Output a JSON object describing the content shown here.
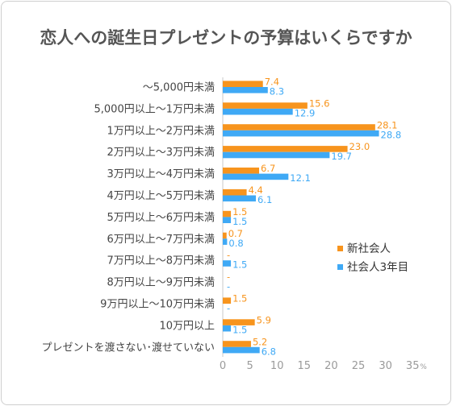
{
  "chart_data": {
    "type": "bar",
    "orientation": "horizontal",
    "title": "恋人への誕生日プレゼントの予算はいくらですか",
    "categories": [
      "～5,000円未満",
      "5,000円以上～1万円未満",
      "1万円以上～2万円未満",
      "2万円以上～3万円未満",
      "3万円以上～4万円未満",
      "4万円以上～5万円未満",
      "5万円以上～6万円未満",
      "6万円以上～7万円未満",
      "7万円以上～8万円未満",
      "8万円以上～9万円未満",
      "9万円以上～10万円未満",
      "10万円以上",
      "プレゼントを渡さない･渡せていない"
    ],
    "series": [
      {
        "name": "新社会人",
        "color": "#f7941d",
        "values": [
          7.4,
          15.6,
          28.1,
          23.0,
          6.7,
          4.4,
          1.5,
          0.7,
          0,
          0,
          1.5,
          5.9,
          5.2
        ],
        "labels": [
          "7.4",
          "15.6",
          "28.1",
          "23.0",
          "6.7",
          "4.4",
          "1.5",
          "0.7",
          "-",
          "-",
          "1.5",
          "5.9",
          "5.2"
        ]
      },
      {
        "name": "社会人3年目",
        "color": "#3fa9f5",
        "values": [
          8.3,
          12.9,
          28.8,
          19.7,
          12.1,
          6.1,
          1.5,
          0.8,
          1.5,
          0,
          0,
          1.5,
          6.8
        ],
        "labels": [
          "8.3",
          "12.9",
          "28.8",
          "19.7",
          "12.1",
          "6.1",
          "1.5",
          "0.8",
          "1.5",
          "-",
          "-",
          "1.5",
          "6.8"
        ]
      }
    ],
    "xlim": [
      0,
      35
    ],
    "xticks": [
      "0",
      "5",
      "10",
      "15",
      "20",
      "25",
      "30",
      "35"
    ],
    "x_unit": "%",
    "grid": false,
    "legend_position": "right"
  }
}
